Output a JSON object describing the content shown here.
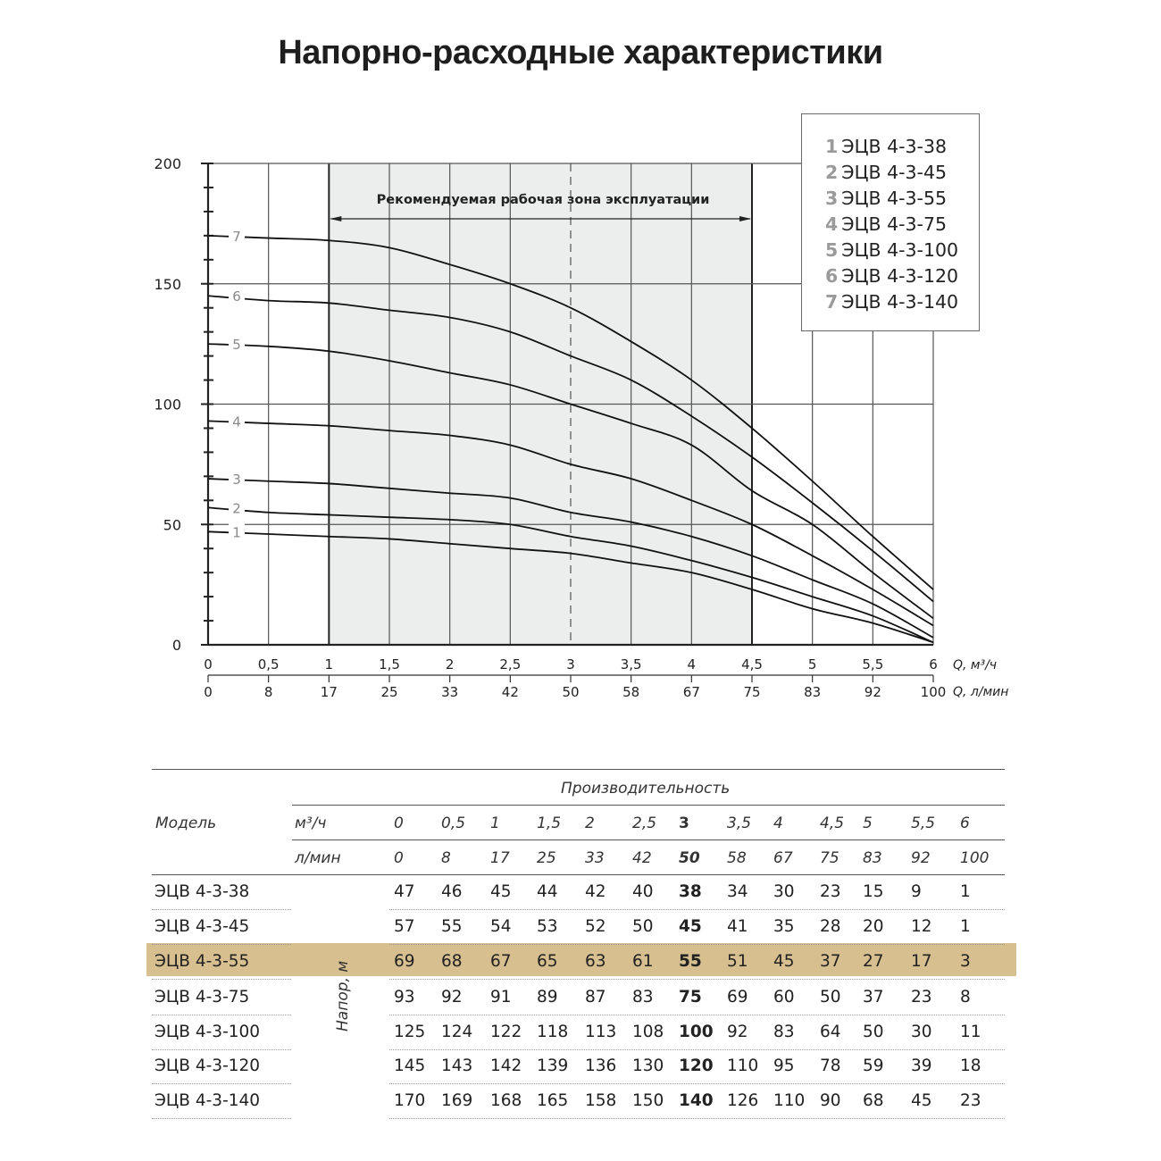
{
  "page": {
    "title": "Напорно-расходные характеристики"
  },
  "chart_data": {
    "type": "line",
    "title": "Напорно-расходные характеристики",
    "annotation": "Рекомендуемая рабочая зона эксплуатации",
    "recommended_zone": {
      "x_from": 1,
      "x_to": 4.5,
      "marker_x": 3
    },
    "x": [
      0,
      0.5,
      1,
      1.5,
      2,
      2.5,
      3,
      3.5,
      4,
      4.5,
      5,
      5.5,
      6
    ],
    "x_ticks_m3h": [
      "0",
      "0,5",
      "1",
      "1,5",
      "2",
      "2,5",
      "3",
      "3,5",
      "4",
      "4,5",
      "5",
      "5,5",
      "6"
    ],
    "x_ticks_lmin": [
      "0",
      "8",
      "17",
      "25",
      "33",
      "42",
      "50",
      "58",
      "67",
      "75",
      "83",
      "92",
      "100"
    ],
    "xlabel": "Q, м³/ч",
    "xlabel2": "Q, л/мин",
    "y_ticks": [
      "0",
      "50",
      "100",
      "150",
      "200"
    ],
    "ylim": [
      0,
      200
    ],
    "xlim": [
      0,
      6
    ],
    "grid": true,
    "legend_position": "top-right",
    "series": [
      {
        "id": "1",
        "name": "ЭЦВ 4-3-38",
        "values": [
          47,
          46,
          45,
          44,
          42,
          40,
          38,
          34,
          30,
          23,
          15,
          9,
          1
        ]
      },
      {
        "id": "2",
        "name": "ЭЦВ 4-3-45",
        "values": [
          57,
          55,
          54,
          53,
          52,
          50,
          45,
          41,
          35,
          28,
          20,
          12,
          1
        ]
      },
      {
        "id": "3",
        "name": "ЭЦВ 4-3-55",
        "values": [
          69,
          68,
          67,
          65,
          63,
          61,
          55,
          51,
          45,
          37,
          27,
          17,
          3
        ]
      },
      {
        "id": "4",
        "name": "ЭЦВ 4-3-75",
        "values": [
          93,
          92,
          91,
          89,
          87,
          83,
          75,
          69,
          60,
          50,
          37,
          23,
          8
        ]
      },
      {
        "id": "5",
        "name": "ЭЦВ 4-3-100",
        "values": [
          125,
          124,
          122,
          118,
          113,
          108,
          100,
          92,
          83,
          64,
          50,
          30,
          11
        ]
      },
      {
        "id": "6",
        "name": "ЭЦВ 4-3-120",
        "values": [
          145,
          143,
          142,
          139,
          136,
          130,
          120,
          110,
          95,
          78,
          59,
          39,
          18
        ]
      },
      {
        "id": "7",
        "name": "ЭЦВ 4-3-140",
        "values": [
          170,
          169,
          168,
          165,
          158,
          150,
          140,
          126,
          110,
          90,
          68,
          45,
          23
        ]
      }
    ]
  },
  "legend": {
    "items": [
      {
        "num": "1",
        "label": "ЭЦВ 4-3-38"
      },
      {
        "num": "2",
        "label": "ЭЦВ 4-3-45"
      },
      {
        "num": "3",
        "label": "ЭЦВ 4-3-55"
      },
      {
        "num": "4",
        "label": "ЭЦВ 4-3-75"
      },
      {
        "num": "5",
        "label": "ЭЦВ 4-3-100"
      },
      {
        "num": "6",
        "label": "ЭЦВ 4-3-120"
      },
      {
        "num": "7",
        "label": "ЭЦВ 4-3-140"
      }
    ]
  },
  "table": {
    "group_header": "Производительность",
    "model_header": "Модель",
    "unit_m3h": "м³/ч",
    "unit_lmin": "л/мин",
    "head_label": "Напор, м",
    "flow_m3h": [
      "0",
      "0,5",
      "1",
      "1,5",
      "2",
      "2,5",
      "3",
      "3,5",
      "4",
      "4,5",
      "5",
      "5,5",
      "6"
    ],
    "flow_lmin": [
      "0",
      "8",
      "17",
      "25",
      "33",
      "42",
      "50",
      "58",
      "67",
      "75",
      "83",
      "92",
      "100"
    ],
    "bold_column_index": 6,
    "highlight_row_index": 2,
    "highlight_color": "#d7bf90",
    "rows": [
      {
        "model": "ЭЦВ 4-3-38",
        "values": [
          "47",
          "46",
          "45",
          "44",
          "42",
          "40",
          "38",
          "34",
          "30",
          "23",
          "15",
          "9",
          "1"
        ]
      },
      {
        "model": "ЭЦВ 4-3-45",
        "values": [
          "57",
          "55",
          "54",
          "53",
          "52",
          "50",
          "45",
          "41",
          "35",
          "28",
          "20",
          "12",
          "1"
        ]
      },
      {
        "model": "ЭЦВ 4-3-55",
        "values": [
          "69",
          "68",
          "67",
          "65",
          "63",
          "61",
          "55",
          "51",
          "45",
          "37",
          "27",
          "17",
          "3"
        ]
      },
      {
        "model": "ЭЦВ 4-3-75",
        "values": [
          "93",
          "92",
          "91",
          "89",
          "87",
          "83",
          "75",
          "69",
          "60",
          "50",
          "37",
          "23",
          "8"
        ]
      },
      {
        "model": "ЭЦВ 4-3-100",
        "values": [
          "125",
          "124",
          "122",
          "118",
          "113",
          "108",
          "100",
          "92",
          "83",
          "64",
          "50",
          "30",
          "11"
        ]
      },
      {
        "model": "ЭЦВ 4-3-120",
        "values": [
          "145",
          "143",
          "142",
          "139",
          "136",
          "130",
          "120",
          "110",
          "95",
          "78",
          "59",
          "39",
          "18"
        ]
      },
      {
        "model": "ЭЦВ 4-3-140",
        "values": [
          "170",
          "169",
          "168",
          "165",
          "158",
          "150",
          "140",
          "126",
          "110",
          "90",
          "68",
          "45",
          "23"
        ]
      }
    ]
  }
}
